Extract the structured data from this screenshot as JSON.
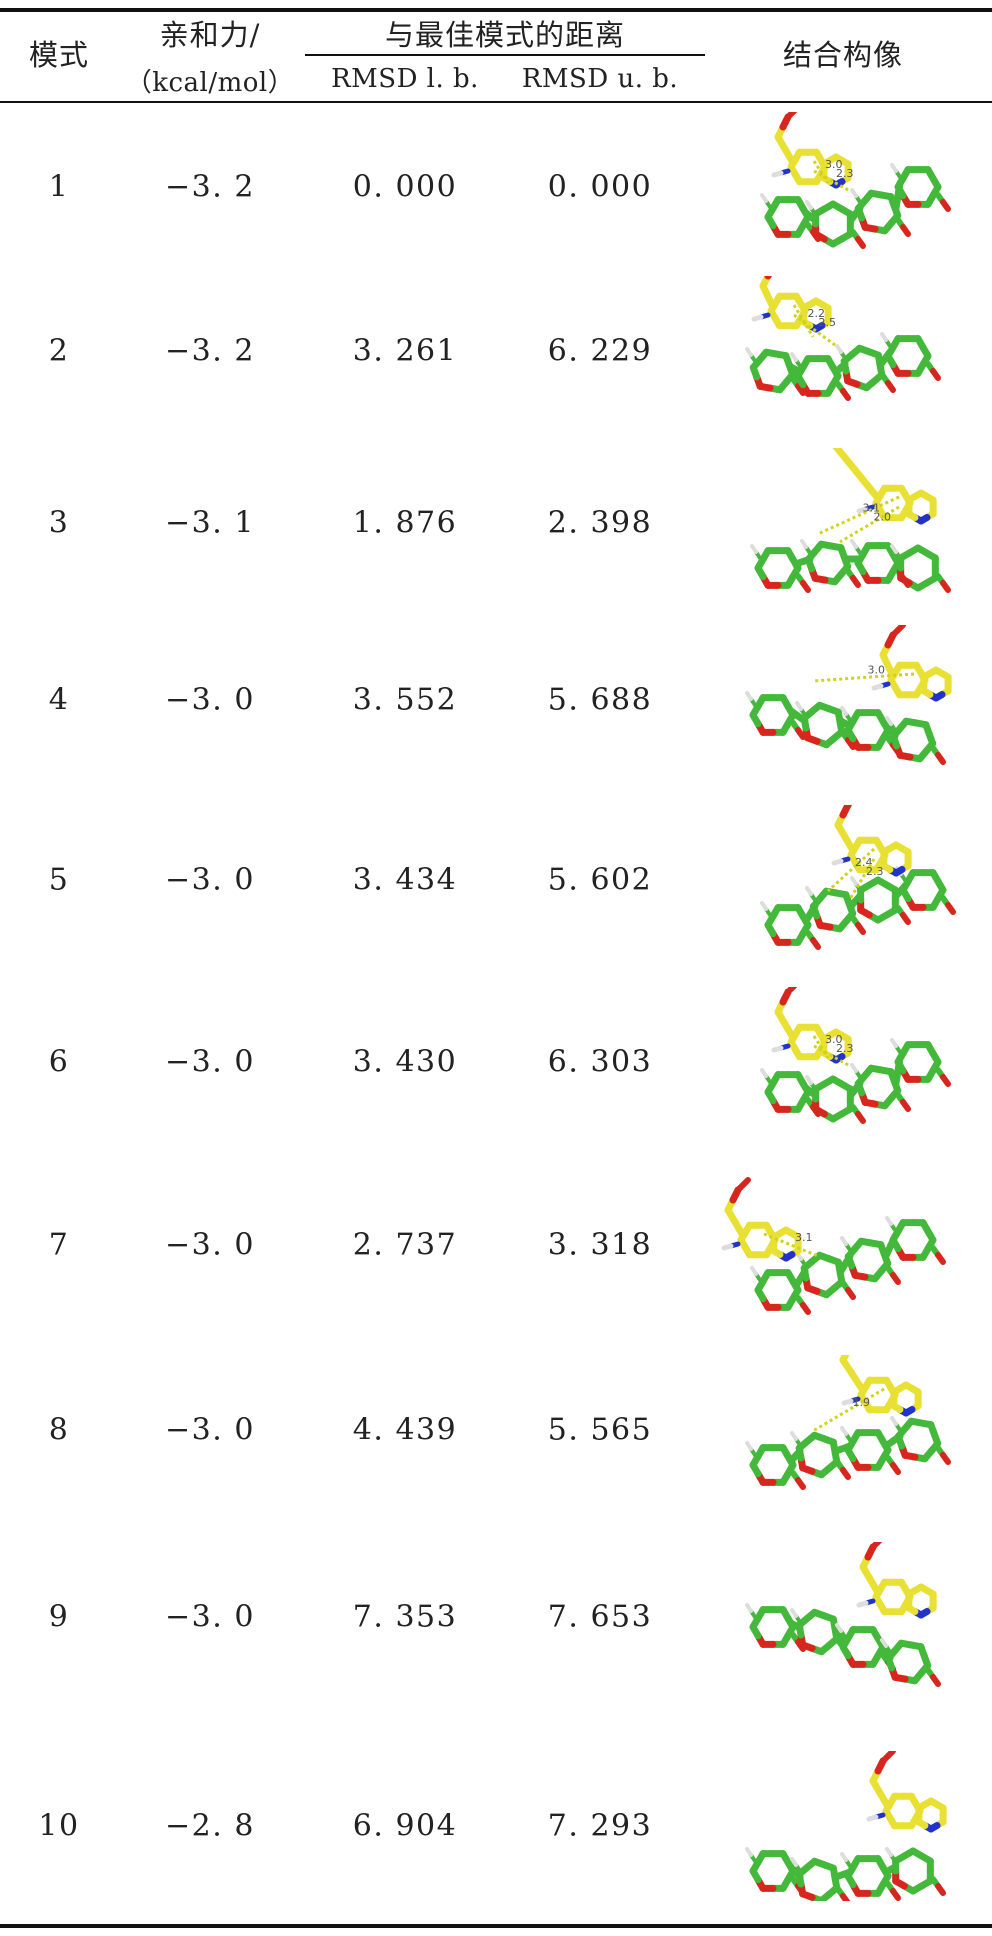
{
  "header": {
    "mode": "模式",
    "affinity": "亲和力/",
    "affinity_unit": "（kcal/mol）",
    "distance_group": "与最佳模式的距离",
    "rmsd_lb": "RMSD l. b.",
    "rmsd_ub": "RMSD u. b.",
    "image": "结合构像"
  },
  "rows": [
    {
      "mode": "1",
      "affinity": "−3. 2",
      "rmsd_lb": "0. 000",
      "rmsd_ub": "0. 000",
      "labels": [
        "3.0",
        "2.3"
      ]
    },
    {
      "mode": "2",
      "affinity": "−3. 2",
      "rmsd_lb": "3. 261",
      "rmsd_ub": "6. 229",
      "labels": [
        "2.2",
        "2.5"
      ]
    },
    {
      "mode": "3",
      "affinity": "−3. 1",
      "rmsd_lb": "1. 876",
      "rmsd_ub": "2. 398",
      "labels": [
        "3.1",
        "2.0"
      ]
    },
    {
      "mode": "4",
      "affinity": "−3. 0",
      "rmsd_lb": "3. 552",
      "rmsd_ub": "5. 688",
      "labels": [
        "3.0"
      ]
    },
    {
      "mode": "5",
      "affinity": "−3. 0",
      "rmsd_lb": "3. 434",
      "rmsd_ub": "5. 602",
      "labels": [
        "2.4",
        "2.3"
      ]
    },
    {
      "mode": "6",
      "affinity": "−3. 0",
      "rmsd_lb": "3. 430",
      "rmsd_ub": "6. 303",
      "labels": [
        "3.0",
        "2.3"
      ]
    },
    {
      "mode": "7",
      "affinity": "−3. 0",
      "rmsd_lb": "2. 737",
      "rmsd_ub": "3. 318",
      "labels": [
        "3.1"
      ]
    },
    {
      "mode": "8",
      "affinity": "−3. 0",
      "rmsd_lb": "4. 439",
      "rmsd_ub": "5. 565",
      "labels": [
        "1.9"
      ]
    },
    {
      "mode": "9",
      "affinity": "−3. 0",
      "rmsd_lb": "7. 353",
      "rmsd_ub": "7. 653",
      "labels": []
    },
    {
      "mode": "10",
      "affinity": "−2. 8",
      "rmsd_lb": "6. 904",
      "rmsd_ub": "7. 293",
      "labels": []
    }
  ],
  "colors": {
    "ligand_carbon": "#44b83a",
    "residue_carbon": "#e8e033",
    "oxygen": "#d7261e",
    "nitrogen": "#2233cc",
    "hydrogen": "#dddddd",
    "hbond": "#cfd41a"
  }
}
